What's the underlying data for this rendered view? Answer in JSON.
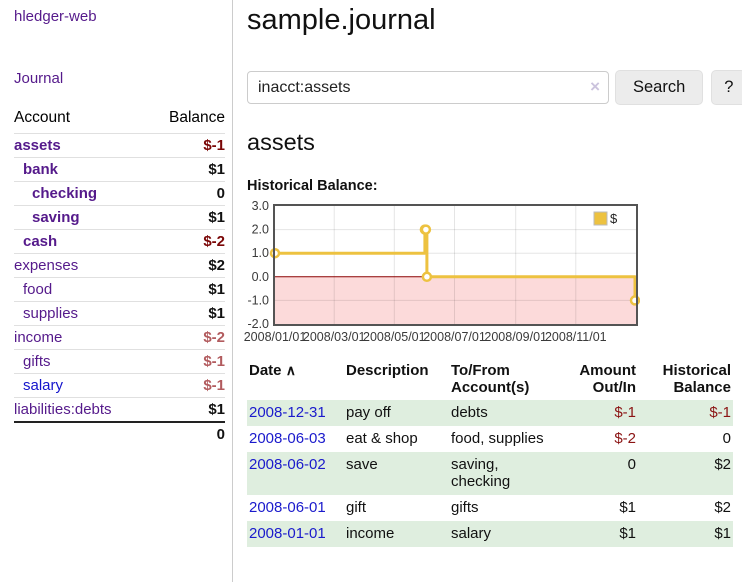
{
  "sidebar": {
    "brand": "hledger-web",
    "nav_journal": "Journal",
    "accounts_table": {
      "account_header": "Account",
      "balance_header": "Balance",
      "rows": [
        {
          "name": "assets",
          "depth": 1,
          "bold": true,
          "link": "purple",
          "balance": "$-1",
          "balance_class": "neg-dark"
        },
        {
          "name": "bank",
          "depth": 2,
          "bold": true,
          "link": "purple",
          "balance": "$1",
          "balance_class": ""
        },
        {
          "name": "checking",
          "depth": 3,
          "bold": true,
          "link": "purple",
          "balance": "0",
          "balance_class": ""
        },
        {
          "name": "saving",
          "depth": 3,
          "bold": true,
          "link": "purple",
          "balance": "$1",
          "balance_class": ""
        },
        {
          "name": "cash",
          "depth": 2,
          "bold": true,
          "link": "purple",
          "balance": "$-2",
          "balance_class": "neg-dark"
        },
        {
          "name": "expenses",
          "depth": 1,
          "bold": false,
          "link": "purple",
          "balance": "$2",
          "balance_class": ""
        },
        {
          "name": "food",
          "depth": 2,
          "bold": false,
          "link": "purple",
          "balance": "$1",
          "balance_class": ""
        },
        {
          "name": "supplies",
          "depth": 2,
          "bold": false,
          "link": "purple",
          "balance": "$1",
          "balance_class": ""
        },
        {
          "name": "income",
          "depth": 1,
          "bold": false,
          "link": "purple",
          "balance": "$-2",
          "balance_class": "neg-light"
        },
        {
          "name": "gifts",
          "depth": 2,
          "bold": false,
          "link": "purple",
          "balance": "$-1",
          "balance_class": "neg-light"
        },
        {
          "name": "salary",
          "depth": 2,
          "bold": false,
          "link": "blue",
          "balance": "$-1",
          "balance_class": "neg-light"
        },
        {
          "name": "liabilities:debts",
          "depth": 1,
          "bold": false,
          "link": "purple",
          "balance": "$1",
          "balance_class": ""
        }
      ],
      "total": "0"
    }
  },
  "header": {
    "title": "sample.journal"
  },
  "search": {
    "value": "inacct:assets",
    "clear_icon": "×",
    "button_label": "Search",
    "help_label": "?"
  },
  "account_page": {
    "heading": "assets",
    "chart_label": "Historical Balance:"
  },
  "chart_data": {
    "type": "line",
    "step": true,
    "title": "Historical Balance:",
    "series": [
      {
        "name": "$",
        "color": "#EDC240",
        "points": [
          [
            "2008-01-01",
            1
          ],
          [
            "2008-06-01",
            2
          ],
          [
            "2008-06-02",
            2
          ],
          [
            "2008-06-03",
            0
          ],
          [
            "2008-12-31",
            -1
          ]
        ]
      }
    ],
    "x_domain": [
      "2008-01-01",
      "2009-01-01"
    ],
    "x_ticks": [
      "2008/01/01",
      "2008/03/01",
      "2008/05/01",
      "2008/07/01",
      "2008/09/01",
      "2008/11/01"
    ],
    "y_ticks": [
      "3.0",
      "2.0",
      "1.0",
      "0.0",
      "-1.0",
      "-2.0"
    ],
    "ylim": [
      -2,
      3
    ],
    "grid": true,
    "legend": {
      "label": "$",
      "position": "top-right"
    },
    "negative_region_color": "#fcdada",
    "zero_line_color": "#8b0000",
    "border_color": "#545454"
  },
  "transactions": {
    "headers": {
      "date": "Date",
      "sort_icon": "∧",
      "description": "Description",
      "accounts": "To/From Account(s)",
      "amount": "Amount Out/In",
      "balance": "Historical Balance"
    },
    "rows": [
      {
        "date": "2008-12-31",
        "description": "pay off",
        "accounts": [
          "debts"
        ],
        "amount": "$-1",
        "balance": "$-1"
      },
      {
        "date": "2008-06-03",
        "description": "eat & shop",
        "accounts": [
          "food, supplies"
        ],
        "amount": "$-2",
        "balance": "0"
      },
      {
        "date": "2008-06-02",
        "description": "save",
        "accounts": [
          "saving,",
          "checking"
        ],
        "amount": "0",
        "balance": "$2"
      },
      {
        "date": "2008-06-01",
        "description": "gift",
        "accounts": [
          "gifts"
        ],
        "amount": "$1",
        "balance": "$2"
      },
      {
        "date": "2008-01-01",
        "description": "income",
        "accounts": [
          "salary"
        ],
        "amount": "$1",
        "balance": "$1"
      }
    ]
  },
  "colors": {
    "link_purple": "#551a8b",
    "link_blue": "#1414cc",
    "date_link_blue": "#1a1acc",
    "negative_dark": "#7a0606",
    "negative_light": "#b25b5e",
    "negative_txn": "#8b1414",
    "row_stripe_green": "#dfeedf",
    "series_gold": "#EDC240"
  }
}
